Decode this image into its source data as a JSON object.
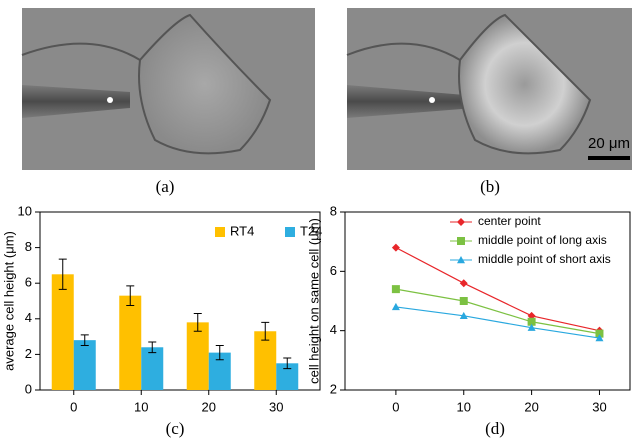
{
  "panels": {
    "a": "(a)",
    "b": "(b)",
    "c": "(c)",
    "d": "(d)"
  },
  "scale_bar": "20 μm",
  "chart_data": [
    {
      "type": "bar",
      "y_label": "average cell height (μm)",
      "categories": [
        "0",
        "10",
        "20",
        "30"
      ],
      "series": [
        {
          "name": "RT4",
          "color": "#ffc000",
          "values": [
            6.5,
            5.3,
            3.8,
            3.3
          ],
          "errors": [
            0.85,
            0.55,
            0.5,
            0.5
          ]
        },
        {
          "name": "T24",
          "color": "#2eaee0",
          "values": [
            2.8,
            2.4,
            2.1,
            1.5
          ],
          "errors": [
            0.3,
            0.3,
            0.4,
            0.3
          ]
        }
      ],
      "ylim": [
        0,
        10
      ],
      "yticks": [
        0,
        2,
        4,
        6,
        8,
        10
      ],
      "legend": "upper right"
    },
    {
      "type": "line",
      "y_label": "cell height on same cell  (μm)",
      "x": [
        0,
        10,
        20,
        30
      ],
      "series": [
        {
          "name": "center point",
          "color": "#e8262a",
          "marker": "diamond",
          "values": [
            6.8,
            5.6,
            4.5,
            4.0
          ]
        },
        {
          "name": "middle point of long axis",
          "color": "#7cc142",
          "marker": "square",
          "values": [
            5.4,
            5.0,
            4.3,
            3.9
          ]
        },
        {
          "name": "middle point of short axis",
          "color": "#29a8df",
          "marker": "triangle",
          "values": [
            4.8,
            4.5,
            4.1,
            3.75
          ]
        }
      ],
      "xlim": [
        -7.5,
        34.5
      ],
      "xticks": [
        0,
        10,
        20,
        30
      ],
      "ylim": [
        2,
        8
      ],
      "yticks": [
        2,
        4,
        6,
        8
      ],
      "legend": "upper center"
    }
  ]
}
